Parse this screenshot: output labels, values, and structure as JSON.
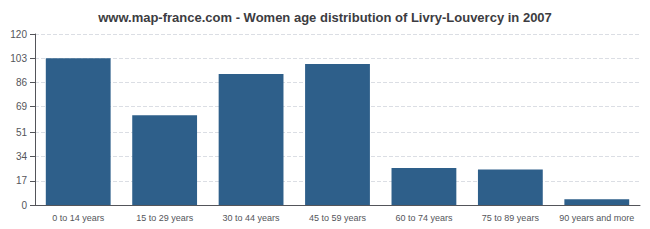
{
  "chart_data": {
    "type": "bar",
    "title": "www.map-france.com - Women age distribution of Livry-Louvercy in 2007",
    "categories": [
      "0 to 14 years",
      "15 to 29 years",
      "30 to 44 years",
      "45 to 59 years",
      "60 to 74 years",
      "75 to 89 years",
      "90 years and more"
    ],
    "values": [
      103,
      63,
      92,
      99,
      26,
      25,
      4
    ],
    "color": "#2e5f8a",
    "ylim": [
      0,
      120
    ],
    "yticks": [
      0,
      17,
      34,
      51,
      69,
      86,
      103,
      120
    ],
    "grid": true
  }
}
